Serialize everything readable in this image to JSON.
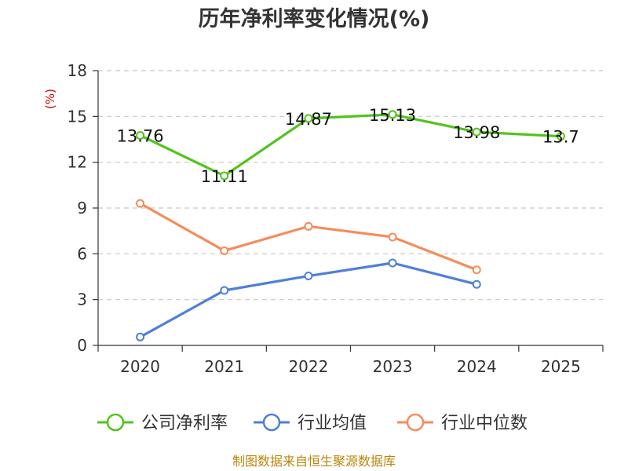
{
  "chart_data": {
    "type": "line",
    "title": "历年净利率变化情况(%)",
    "ylabel": "(%)",
    "categories": [
      "2020",
      "2021",
      "2022",
      "2023",
      "2024",
      "2025"
    ],
    "ylim": [
      0,
      18
    ],
    "yticks": [
      0,
      3,
      6,
      9,
      12,
      15,
      18
    ],
    "grid": true,
    "legend_position": "bottom",
    "series": [
      {
        "name": "公司净利率",
        "color": "#52c41a",
        "values": [
          13.76,
          11.11,
          14.87,
          15.13,
          13.98,
          13.7
        ],
        "labels": [
          "13.76",
          "11.11",
          "14.87",
          "15.13",
          "13.98",
          "13.7"
        ]
      },
      {
        "name": "行业均值",
        "color": "#4f7fd8",
        "values": [
          0.55,
          3.6,
          4.55,
          5.4,
          4.0,
          null
        ]
      },
      {
        "name": "行业中位数",
        "color": "#f58c5a",
        "values": [
          9.3,
          6.2,
          7.8,
          7.1,
          4.95,
          null
        ]
      }
    ],
    "source": "制图数据来自恒生聚源数据库"
  }
}
